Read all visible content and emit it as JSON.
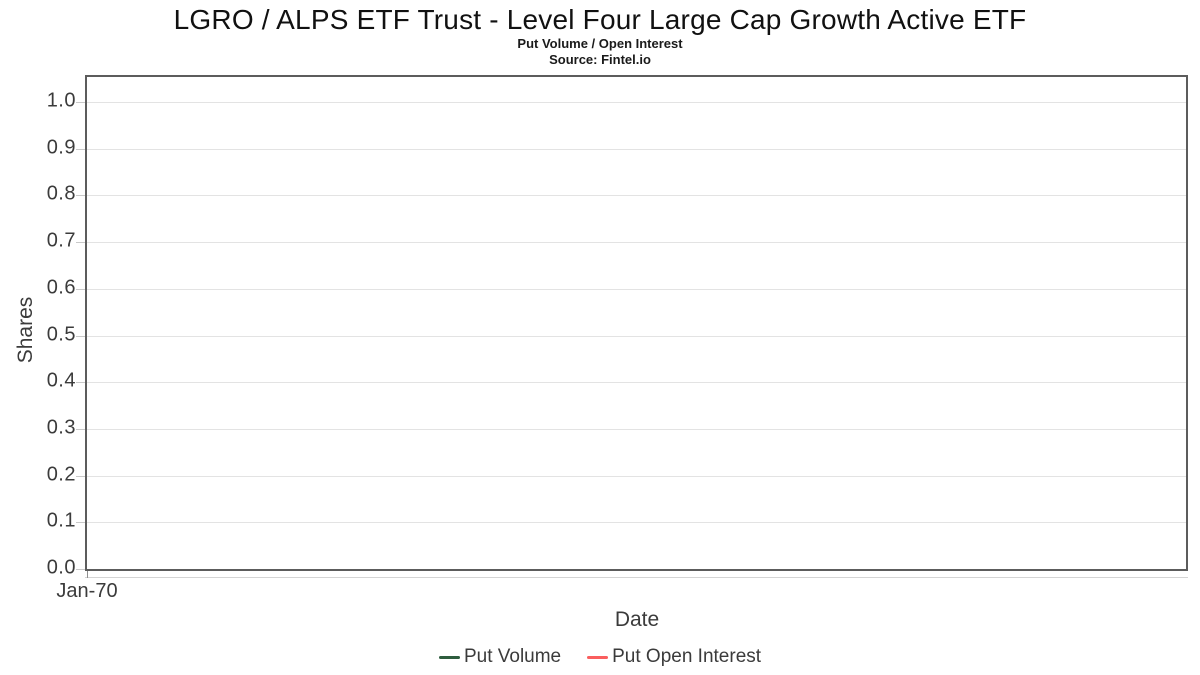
{
  "colors": {
    "plot_border": "#5c5c5c",
    "gridline": "#e3e3e3",
    "tick": "#c9c9c9",
    "axis_subline": "#d4d4d4",
    "text": "#3b3b3b",
    "title_text": "#111111"
  },
  "chart_data": {
    "type": "line",
    "title": "LGRO / ALPS ETF Trust - Level Four Large Cap Growth Active ETF",
    "subtitle": "Put Volume / Open Interest",
    "source": "Source: Fintel.io",
    "xlabel": "Date",
    "ylabel": "Shares",
    "ylim": [
      0.0,
      1.0
    ],
    "yticks": [
      "1.0",
      "0.9",
      "0.8",
      "0.7",
      "0.6",
      "0.5",
      "0.4",
      "0.3",
      "0.2",
      "0.1",
      "0.0"
    ],
    "xticks": [
      "Jan-70"
    ],
    "grid": true,
    "legend_position": "bottom",
    "series": [
      {
        "name": "Put Volume",
        "color": "#2e5d3e",
        "values": []
      },
      {
        "name": "Put Open Interest",
        "color": "#fa5e5e",
        "values": []
      }
    ]
  }
}
